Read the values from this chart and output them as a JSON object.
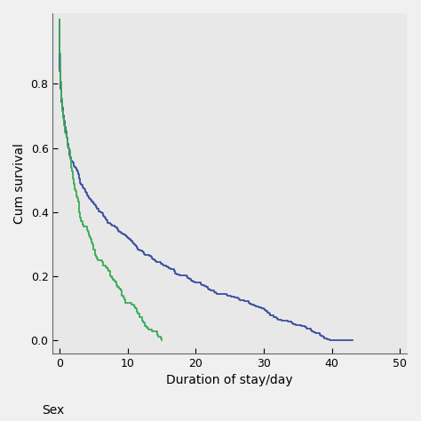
{
  "title": "",
  "xlabel": "Duration of stay/day",
  "ylabel": "Cum survival",
  "xlim": [
    -1,
    51
  ],
  "ylim": [
    -0.04,
    1.02
  ],
  "xticks": [
    0,
    10,
    20,
    30,
    40,
    50
  ],
  "yticks": [
    0.0,
    0.2,
    0.4,
    0.6,
    0.8
  ],
  "plot_bg_color": "#e8e8e8",
  "fig_bg_color": "#f0f0f0",
  "blue_color": "#3a4fa0",
  "green_color": "#3aaa55",
  "caption": "Sex",
  "xlabel_fontsize": 10,
  "ylabel_fontsize": 10,
  "tick_labelsize": 9,
  "linewidth": 1.3
}
